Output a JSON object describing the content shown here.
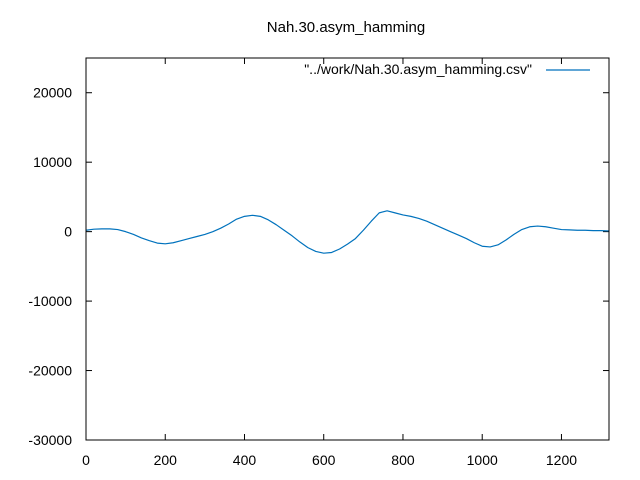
{
  "chart_data": {
    "type": "line",
    "title": "Nah.30.asym_hamming",
    "xlabel": "",
    "ylabel": "",
    "xlim": [
      0,
      1320
    ],
    "ylim": [
      -30000,
      25000
    ],
    "xticks": [
      0,
      200,
      400,
      600,
      800,
      1000,
      1200
    ],
    "yticks": [
      -30000,
      -20000,
      -10000,
      0,
      10000,
      20000
    ],
    "xtick_labels": [
      "0",
      "200",
      "400",
      "600",
      "800",
      "1000",
      "1200"
    ],
    "ytick_labels": [
      "-30000",
      "-20000",
      "-10000",
      "0",
      "10000",
      "20000"
    ],
    "grid": false,
    "legend_position": "top-right",
    "color": "#0072bd",
    "series": [
      {
        "name": "\"../work/Nah.30.asym_hamming.csv\"",
        "x": [
          0,
          20,
          40,
          60,
          80,
          100,
          120,
          140,
          160,
          180,
          200,
          220,
          240,
          260,
          280,
          300,
          320,
          340,
          360,
          380,
          400,
          420,
          440,
          460,
          480,
          500,
          520,
          540,
          560,
          580,
          600,
          620,
          640,
          660,
          680,
          700,
          720,
          740,
          760,
          780,
          800,
          820,
          840,
          860,
          880,
          900,
          920,
          940,
          960,
          980,
          1000,
          1020,
          1040,
          1060,
          1080,
          1100,
          1120,
          1140,
          1160,
          1180,
          1200,
          1220,
          1240,
          1260,
          1280,
          1300,
          1320
        ],
        "values": [
          200,
          350,
          400,
          400,
          300,
          0,
          -400,
          -900,
          -1300,
          -1650,
          -1750,
          -1600,
          -1300,
          -1000,
          -700,
          -400,
          0,
          500,
          1100,
          1800,
          2200,
          2350,
          2200,
          1700,
          1000,
          200,
          -600,
          -1500,
          -2300,
          -2850,
          -3100,
          -3000,
          -2500,
          -1800,
          -1000,
          200,
          1500,
          2700,
          3000,
          2700,
          2400,
          2200,
          1900,
          1500,
          1000,
          500,
          0,
          -500,
          -1000,
          -1600,
          -2100,
          -2200,
          -1900,
          -1200,
          -400,
          300,
          700,
          800,
          700,
          500,
          300,
          250,
          200,
          200,
          150,
          150,
          100
        ]
      }
    ]
  }
}
